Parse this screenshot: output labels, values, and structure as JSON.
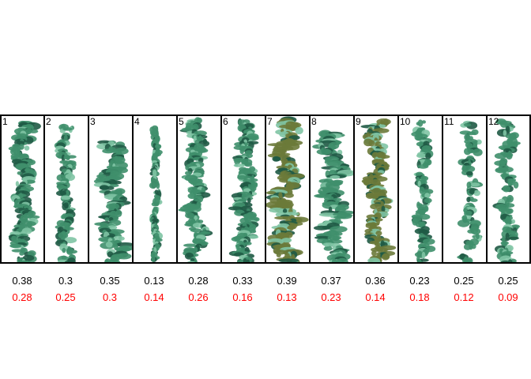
{
  "colors": {
    "texture_main": "#3f8f6c",
    "texture_dark": "#1f5a45",
    "texture_light": "#7fc4a4",
    "texture_olive": "#6b7a3a",
    "second_row": "#ff0000"
  },
  "panels": [
    {
      "label": "1",
      "value_a": "0.38",
      "value_b": "0.28"
    },
    {
      "label": "2",
      "value_a": "0.3",
      "value_b": "0.25"
    },
    {
      "label": "3",
      "value_a": "0.35",
      "value_b": "0.3"
    },
    {
      "label": "4",
      "value_a": "0.13",
      "value_b": "0.14"
    },
    {
      "label": "5",
      "value_a": "0.28",
      "value_b": "0.26"
    },
    {
      "label": "6",
      "value_a": "0.33",
      "value_b": "0.16"
    },
    {
      "label": "7",
      "value_a": "0.39",
      "value_b": "0.13"
    },
    {
      "label": "8",
      "value_a": "0.37",
      "value_b": "0.23"
    },
    {
      "label": "9",
      "value_a": "0.36",
      "value_b": "0.14"
    },
    {
      "label": "10",
      "value_a": "0.23",
      "value_b": "0.18"
    },
    {
      "label": "11",
      "value_a": "0.25",
      "value_b": "0.12"
    },
    {
      "label": "12",
      "value_a": "0.25",
      "value_b": "0.09"
    }
  ]
}
